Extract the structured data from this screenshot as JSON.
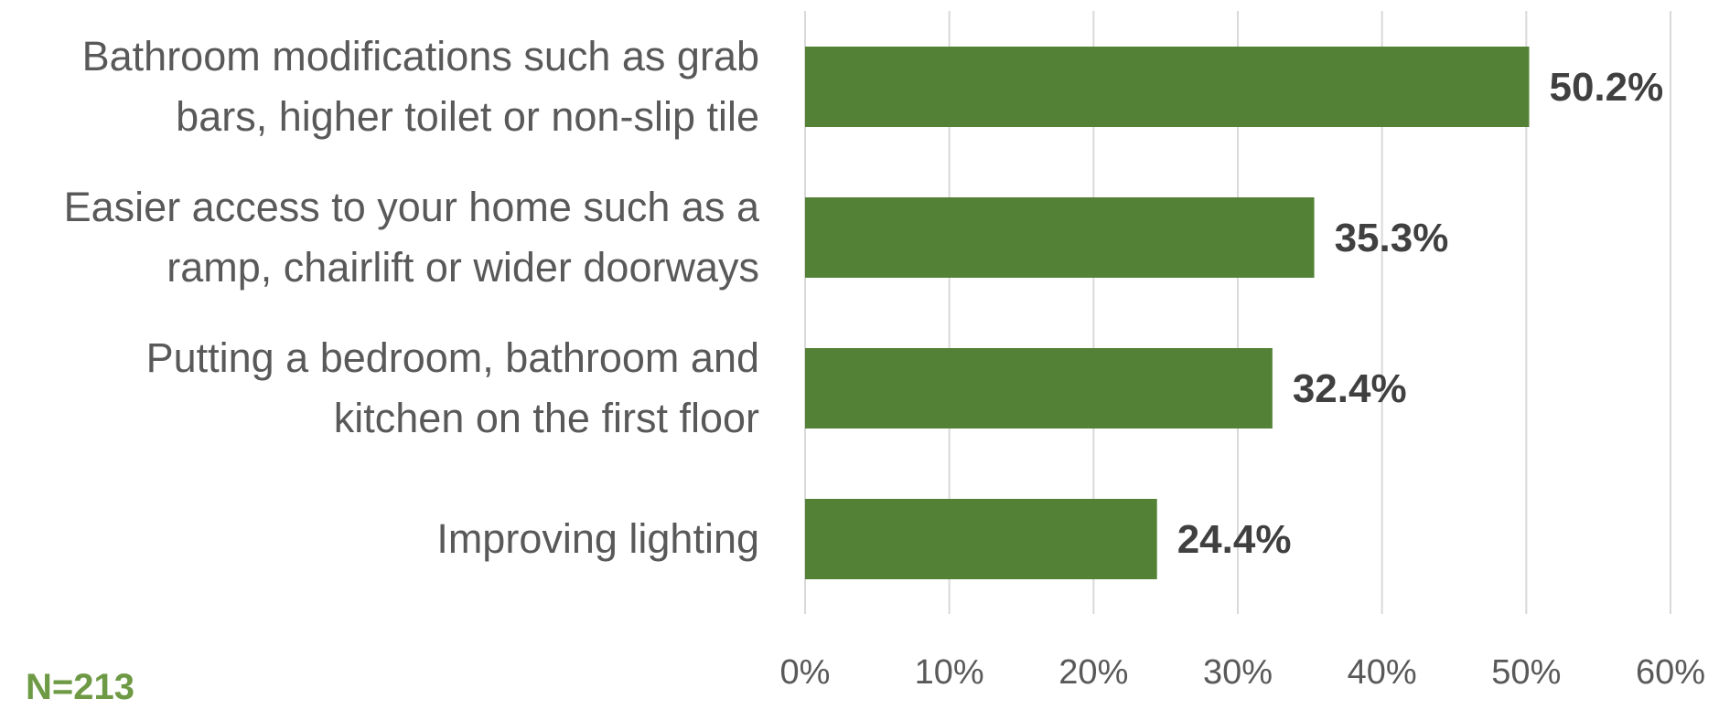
{
  "chart_data": {
    "type": "bar",
    "orientation": "horizontal",
    "categories": [
      [
        "Bathroom modifications such as grab",
        "bars, higher toilet or non-slip tile"
      ],
      [
        "Easier access to your home such as a",
        "ramp, chairlift or wider doorways"
      ],
      [
        "Putting a bedroom, bathroom and",
        "kitchen on the first floor"
      ],
      [
        "Improving lighting"
      ]
    ],
    "values": [
      50.2,
      35.3,
      32.4,
      24.4
    ],
    "data_labels": [
      "50.2%",
      "35.3%",
      "32.4%",
      "24.4%"
    ],
    "x_ticks": [
      "0%",
      "10%",
      "20%",
      "30%",
      "40%",
      "50%",
      "60%"
    ],
    "xlim": [
      0,
      60
    ],
    "grid": true,
    "bar_color": "#538135",
    "gridline_color": "#d9d9d9",
    "label_color": "#595959",
    "title": "",
    "xlabel": "",
    "ylabel": ""
  },
  "footnote": "N=213"
}
